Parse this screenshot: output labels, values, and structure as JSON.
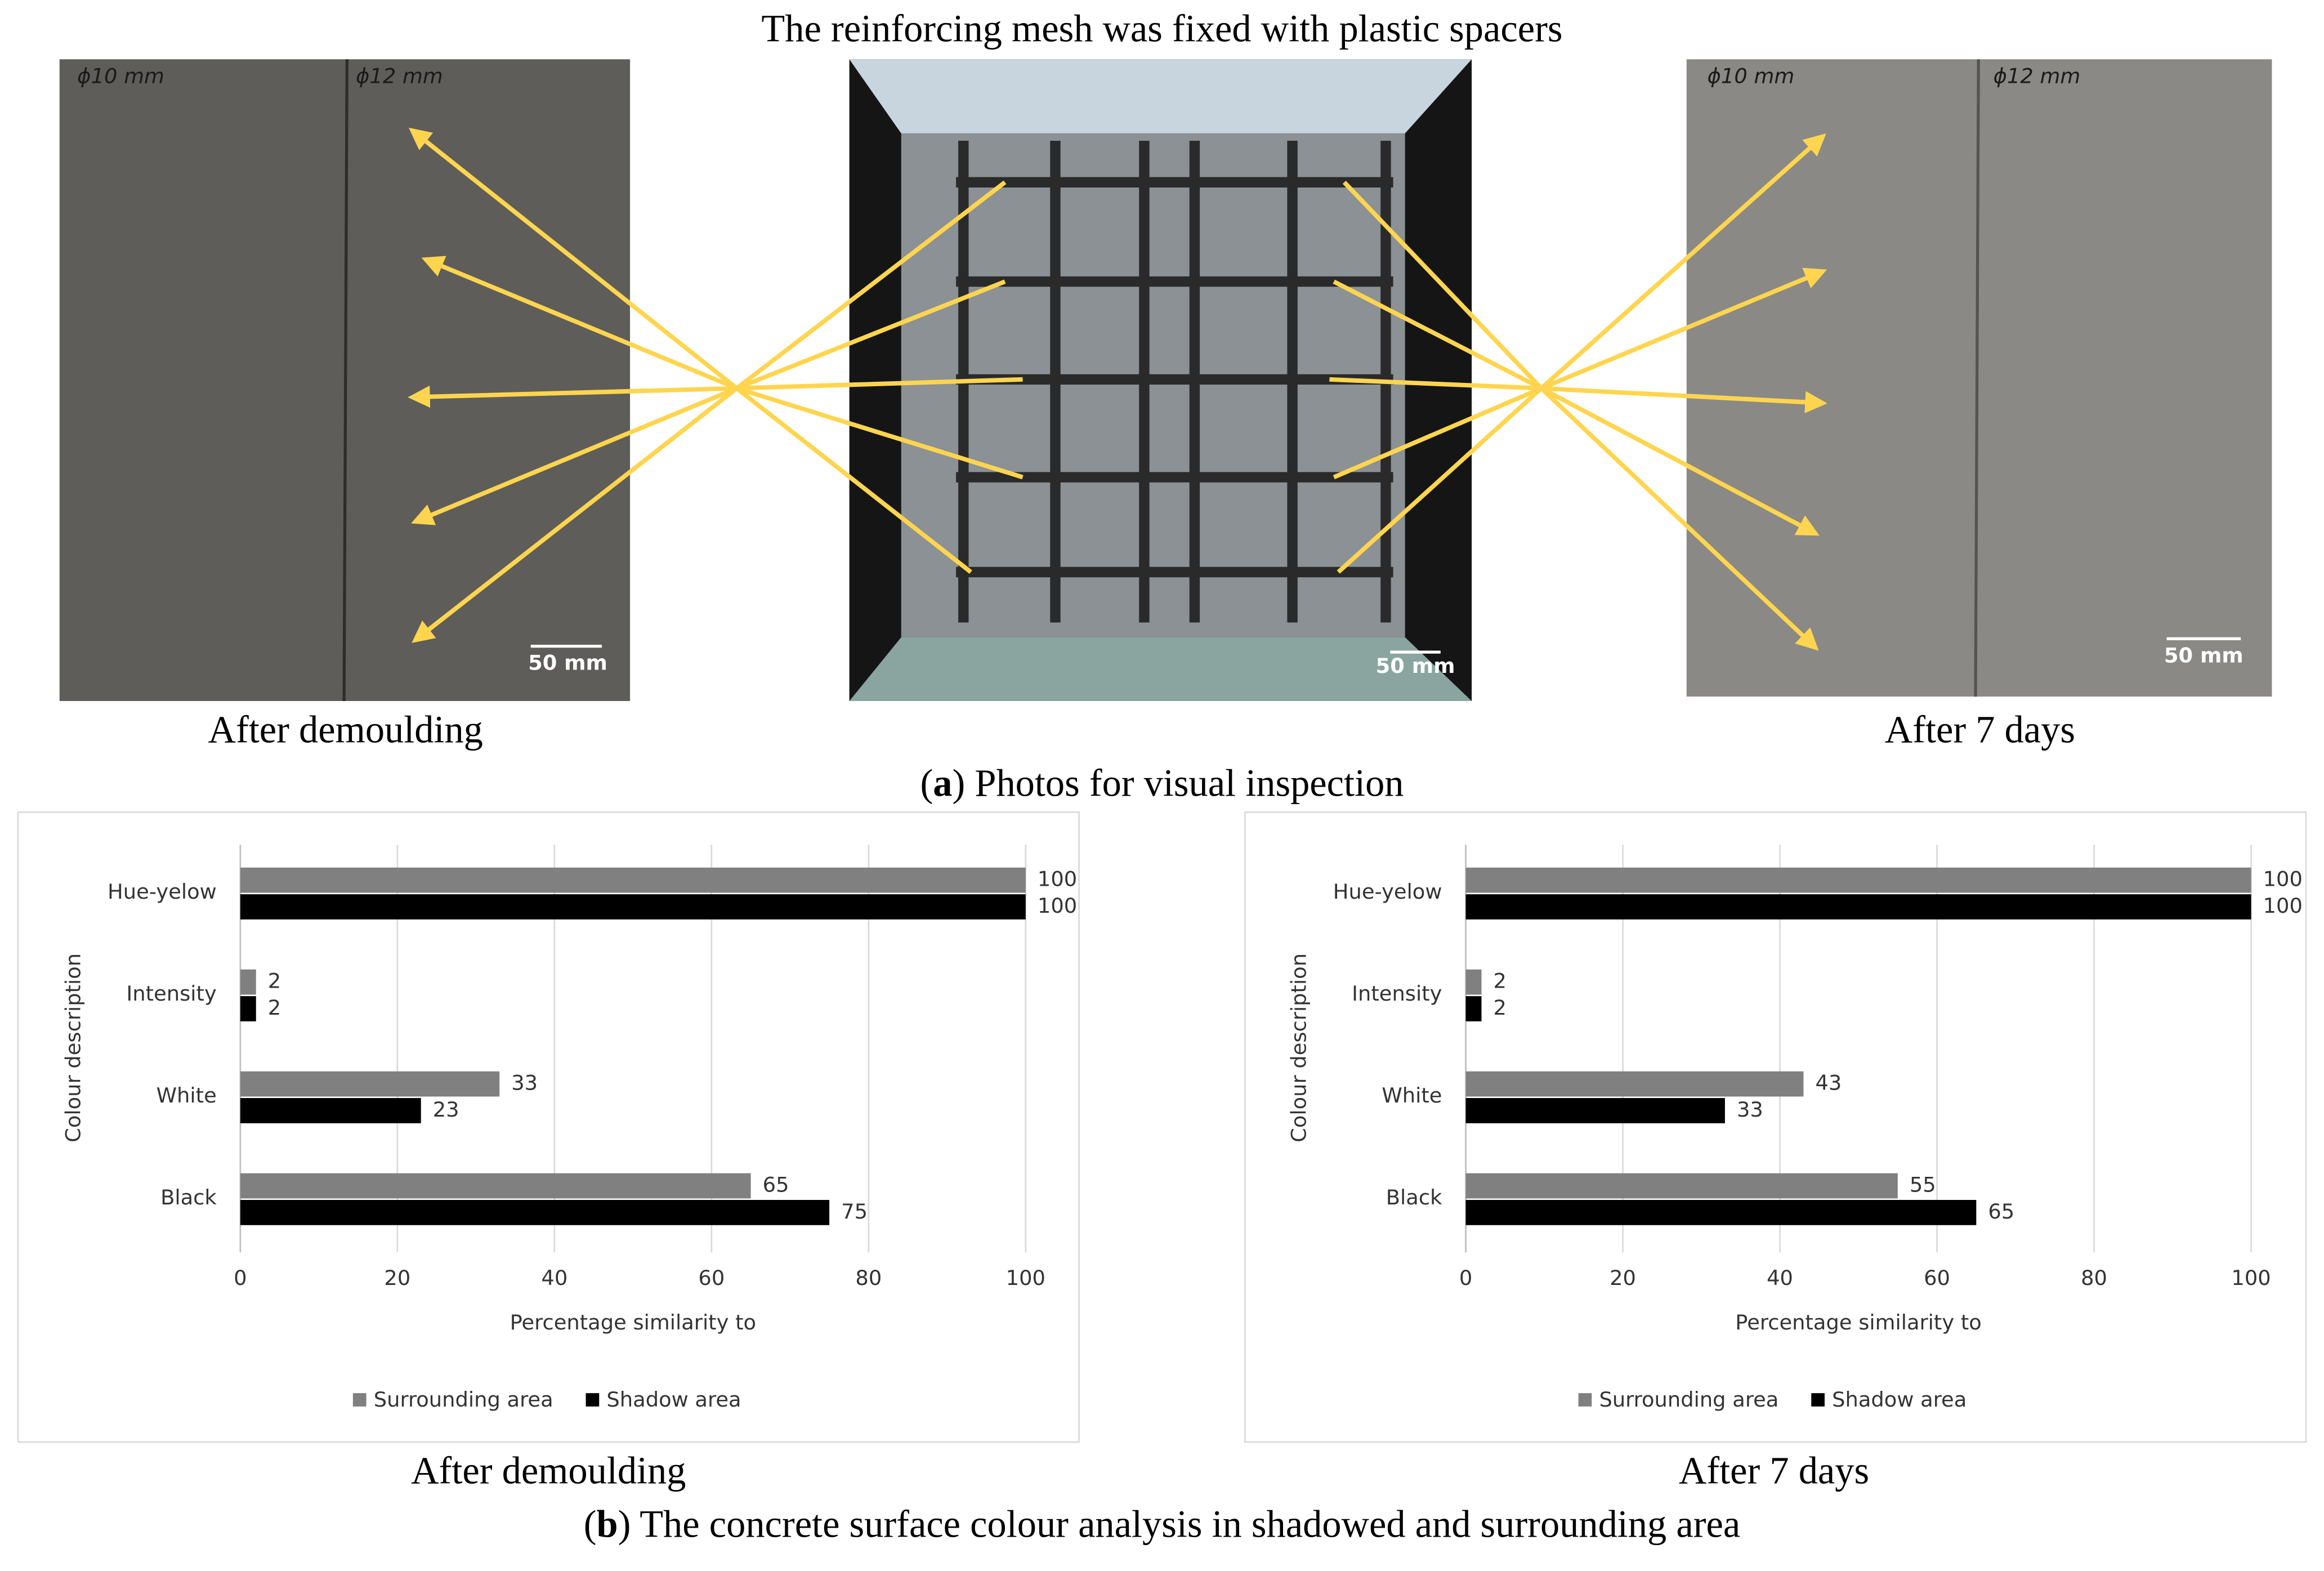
{
  "figure_title": "The reinforcing mesh was fixed with plastic spacers",
  "photos": [
    {
      "caption": "After demoulding",
      "annotations": [
        "ϕ10 mm",
        "ϕ12 mm"
      ],
      "scale_label": "50 mm"
    },
    {
      "scale_label": "50 mm"
    },
    {
      "caption": "After 7 days",
      "annotations": [
        "ϕ10 mm",
        "ϕ12 mm"
      ],
      "scale_label": "50 mm"
    }
  ],
  "panel_a_caption": [
    "(",
    "a",
    ") Photos for visual inspection"
  ],
  "panel_b_caption": [
    "(",
    "b",
    ") The concrete surface colour analysis in shadowed and surrounding area"
  ],
  "chart_data": [
    {
      "type": "hbar",
      "caption": "After demoulding",
      "x_label": "Percentage similarity to",
      "y_label": "Colour description",
      "categories": [
        "Hue-yelow",
        "Intensity",
        "White",
        "Black"
      ],
      "series": [
        {
          "name": "Surrounding area",
          "color": "#808080",
          "values": [
            100,
            2,
            33,
            65
          ]
        },
        {
          "name": "Shadow area",
          "color": "#000000",
          "values": [
            100,
            2,
            23,
            75
          ]
        }
      ],
      "xlim": [
        0,
        100
      ],
      "xticks": [
        0,
        20,
        40,
        60,
        80,
        100
      ],
      "grid": true,
      "legend": "bottom"
    },
    {
      "type": "hbar",
      "caption": "After 7 days",
      "x_label": "Percentage similarity to",
      "y_label": "Colour description",
      "categories": [
        "Hue-yelow",
        "Intensity",
        "White",
        "Black"
      ],
      "series": [
        {
          "name": "Surrounding area",
          "color": "#808080",
          "values": [
            100,
            2,
            43,
            55
          ]
        },
        {
          "name": "Shadow area",
          "color": "#000000",
          "values": [
            100,
            2,
            33,
            65
          ]
        }
      ],
      "xlim": [
        0,
        100
      ],
      "xticks": [
        0,
        20,
        40,
        60,
        80,
        100
      ],
      "grid": true,
      "legend": "bottom"
    }
  ]
}
